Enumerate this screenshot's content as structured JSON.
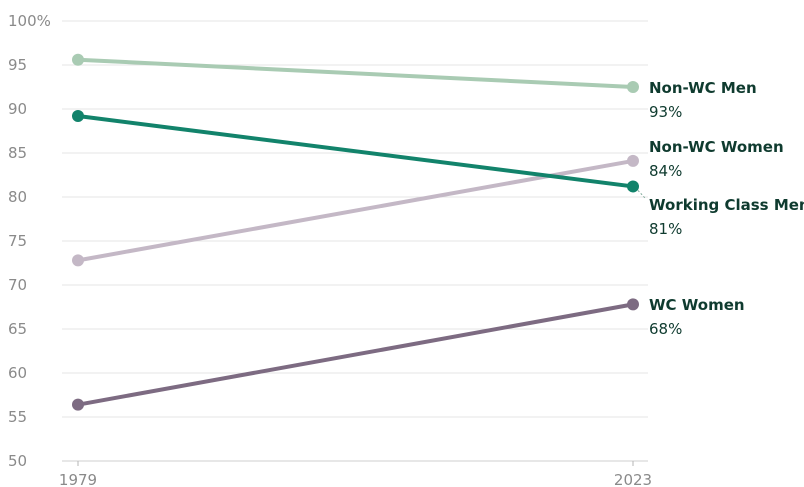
{
  "chart_data": {
    "type": "line",
    "x": [
      "1979",
      "2023"
    ],
    "ylim": [
      50,
      100
    ],
    "y_ticks": [
      {
        "value": 100,
        "label": "100%"
      },
      {
        "value": 95,
        "label": "95"
      },
      {
        "value": 90,
        "label": "90"
      },
      {
        "value": 85,
        "label": "85"
      },
      {
        "value": 80,
        "label": "80"
      },
      {
        "value": 75,
        "label": "75"
      },
      {
        "value": 70,
        "label": "70"
      },
      {
        "value": 65,
        "label": "65"
      },
      {
        "value": 60,
        "label": "60"
      },
      {
        "value": 55,
        "label": "55"
      },
      {
        "value": 50,
        "label": "50"
      }
    ],
    "grid": true,
    "series": [
      {
        "name": "Non-WC Men",
        "values": [
          95.6,
          92.5
        ],
        "end_label": "93%",
        "color": "#a9cbb3"
      },
      {
        "name": "Non-WC Women",
        "values": [
          72.8,
          84.1
        ],
        "end_label": "84%",
        "color": "#c4b8c6"
      },
      {
        "name": "Working Class Men",
        "values": [
          89.2,
          81.2
        ],
        "end_label": "81%",
        "color": "#12836b"
      },
      {
        "name": "WC Women",
        "values": [
          56.4,
          67.8
        ],
        "end_label": "68%",
        "color": "#7d6b82"
      }
    ]
  }
}
